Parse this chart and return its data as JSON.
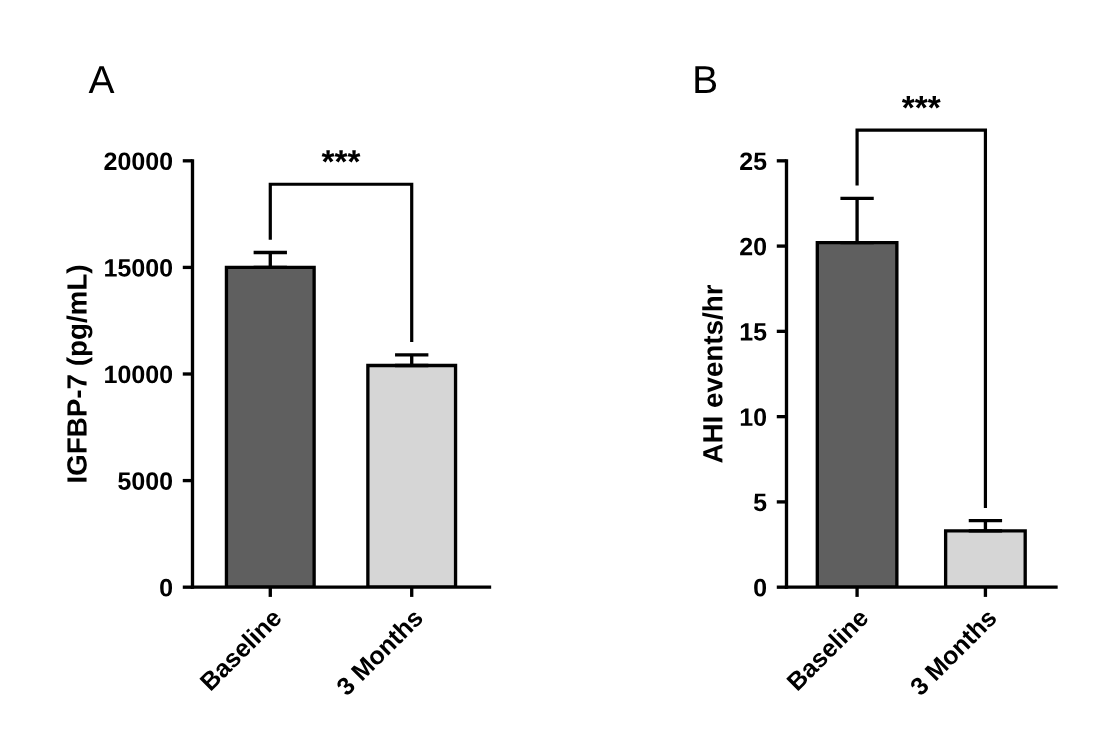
{
  "chart_data": [
    {
      "type": "bar",
      "title": "A",
      "ylabel": "IGFBP-7 (pg/mL)",
      "categories": [
        "Baseline",
        "3 Months"
      ],
      "colors": [
        "#5f5f5f",
        "#d6d6d6"
      ],
      "values": [
        15000,
        10400
      ],
      "errors": [
        700,
        500
      ],
      "ylim": [
        0,
        20000
      ],
      "yticks": [
        0,
        5000,
        10000,
        15000,
        20000
      ],
      "grid": false,
      "annotations": [
        "***"
      ]
    },
    {
      "type": "bar",
      "title": "B",
      "ylabel": "AHI events/hr",
      "categories": [
        "Baseline",
        "3 Months"
      ],
      "colors": [
        "#5f5f5f",
        "#d6d6d6"
      ],
      "values": [
        20.2,
        3.3
      ],
      "errors": [
        2.6,
        0.6
      ],
      "ylim": [
        0,
        25
      ],
      "yticks": [
        0,
        5,
        10,
        15,
        20,
        25
      ],
      "grid": false,
      "annotations": [
        "***"
      ]
    }
  ]
}
